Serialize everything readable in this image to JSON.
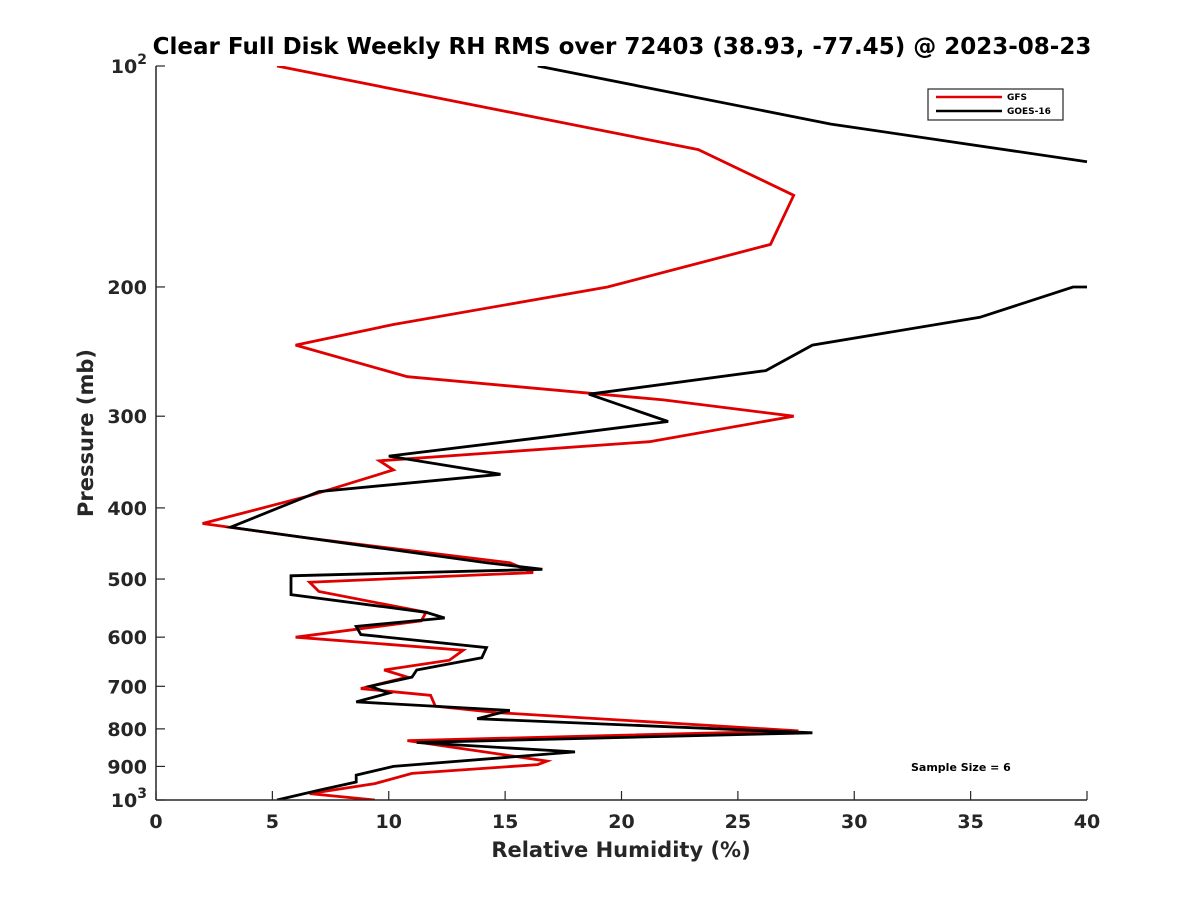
{
  "chart_data": {
    "type": "line",
    "title": "Clear Full Disk Weekly RH RMS over 72403 (38.93, -77.45) @ 2023-08-23",
    "xlabel": "Relative Humidity (%)",
    "ylabel": "Pressure (mb)",
    "xlim": [
      0,
      40
    ],
    "ylim": [
      100,
      1000
    ],
    "yscale": "log",
    "y_reversed": true,
    "grid": false,
    "legend_position": "top-right",
    "x_ticks": [
      "0",
      "5",
      "10",
      "15",
      "20",
      "25",
      "30",
      "35",
      "40"
    ],
    "y_ticks": [
      {
        "value": 100,
        "base": "10",
        "exp": "2"
      },
      {
        "value": 200,
        "label": "200"
      },
      {
        "value": 300,
        "label": "300"
      },
      {
        "value": 400,
        "label": "400"
      },
      {
        "value": 500,
        "label": "500"
      },
      {
        "value": 600,
        "label": "600"
      },
      {
        "value": 700,
        "label": "700"
      },
      {
        "value": 800,
        "label": "800"
      },
      {
        "value": 900,
        "label": "900"
      },
      {
        "value": 1000,
        "base": "10",
        "exp": "3"
      }
    ],
    "annotation": "Sample Size = 6",
    "series": [
      {
        "name": "GFS",
        "color": "#e00000",
        "points": [
          [
            5.2,
            100
          ],
          [
            23.3,
            130
          ],
          [
            27.4,
            150
          ],
          [
            26.4,
            175
          ],
          [
            19.4,
            200
          ],
          [
            10.2,
            225
          ],
          [
            6.0,
            240
          ],
          [
            10.8,
            265
          ],
          [
            21.8,
            285
          ],
          [
            27.4,
            300
          ],
          [
            21.2,
            325
          ],
          [
            9.6,
            345
          ],
          [
            10.2,
            355
          ],
          [
            6.6,
            385
          ],
          [
            2.0,
            420
          ],
          [
            6.6,
            440
          ],
          [
            15.2,
            475
          ],
          [
            16.2,
            490
          ],
          [
            6.6,
            505
          ],
          [
            7.0,
            520
          ],
          [
            11.6,
            555
          ],
          [
            11.4,
            570
          ],
          [
            6.0,
            600
          ],
          [
            13.2,
            625
          ],
          [
            12.6,
            645
          ],
          [
            9.8,
            665
          ],
          [
            10.8,
            680
          ],
          [
            8.8,
            705
          ],
          [
            11.8,
            720
          ],
          [
            12.0,
            745
          ],
          [
            14.6,
            760
          ],
          [
            27.6,
            805
          ],
          [
            10.8,
            830
          ],
          [
            16.8,
            885
          ],
          [
            16.4,
            895
          ],
          [
            11.0,
            920
          ],
          [
            9.4,
            950
          ],
          [
            6.6,
            980
          ],
          [
            9.4,
            1000
          ]
        ]
      },
      {
        "name": "GOES-16",
        "color": "#000000",
        "points": [
          [
            16.4,
            100
          ],
          [
            29.0,
            120
          ],
          [
            40.0,
            135
          ],
          [
            null,
            null
          ],
          [
            40.0,
            200
          ],
          [
            39.4,
            200
          ],
          [
            35.4,
            220
          ],
          [
            28.2,
            240
          ],
          [
            26.2,
            260
          ],
          [
            18.6,
            280
          ],
          [
            22.0,
            305
          ],
          [
            16.8,
            320
          ],
          [
            10.0,
            340
          ],
          [
            14.8,
            360
          ],
          [
            7.0,
            380
          ],
          [
            3.2,
            425
          ],
          [
            6.6,
            440
          ],
          [
            14.2,
            475
          ],
          [
            16.6,
            485
          ],
          [
            5.8,
            495
          ],
          [
            5.8,
            525
          ],
          [
            11.6,
            555
          ],
          [
            12.4,
            565
          ],
          [
            8.6,
            580
          ],
          [
            8.8,
            595
          ],
          [
            14.2,
            620
          ],
          [
            14.0,
            640
          ],
          [
            11.2,
            665
          ],
          [
            11.0,
            680
          ],
          [
            9.2,
            700
          ],
          [
            10.0,
            715
          ],
          [
            8.6,
            735
          ],
          [
            15.2,
            755
          ],
          [
            13.8,
            775
          ],
          [
            28.2,
            810
          ],
          [
            11.2,
            835
          ],
          [
            18.0,
            860
          ],
          [
            10.2,
            900
          ],
          [
            8.6,
            925
          ],
          [
            8.6,
            945
          ],
          [
            7.0,
            970
          ],
          [
            5.2,
            1000
          ]
        ]
      }
    ]
  }
}
